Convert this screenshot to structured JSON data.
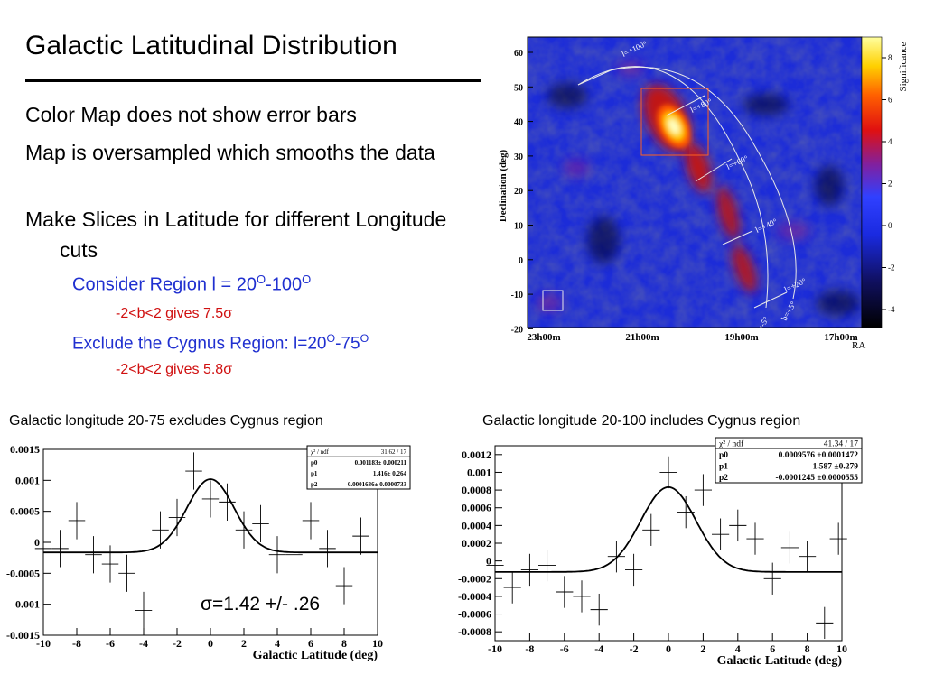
{
  "slide": {
    "title": "Galactic Latitudinal Distribution",
    "bullets": [
      "Color Map does not show error bars",
      "Map is oversampled which smooths the data",
      "Make Slices in Latitude for different Longitude cuts"
    ],
    "sub_bullets": [
      {
        "level": 1,
        "text": "Consider Region l = 20",
        "sup1": "O",
        "mid": "-100",
        "sup2": "O",
        "color": "#2030d0"
      },
      {
        "level": 2,
        "text": "-2<b<2 gives 7.5σ",
        "color": "#d01010"
      },
      {
        "level": 1,
        "text": "Exclude the Cygnus Region: l=20",
        "sup1": "O",
        "mid": "-75",
        "sup2": "O",
        "color": "#2030d0"
      },
      {
        "level": 2,
        "text": "-2<b<2 gives 5.8σ",
        "color": "#d01010"
      }
    ]
  },
  "skymap": {
    "ylabel": "Declination (deg)",
    "y_ticks": [
      "60",
      "50",
      "40",
      "30",
      "20",
      "10",
      "0",
      "-10",
      "-20"
    ],
    "x_ticks": [
      "23h00m",
      "21h00m",
      "19h00m",
      "17h00m"
    ],
    "xlabel": "RA",
    "colorbar_label": "Significance",
    "colorbar_ticks": [
      "8",
      "6",
      "4",
      "2",
      "0",
      "-2",
      "-4"
    ],
    "longitude_labels": [
      "l=+100°",
      "l=+80°",
      "l=+60°",
      "l=+40°",
      "l=+20°"
    ],
    "latitude_labels": [
      "b=+5°",
      "b=-5°"
    ]
  },
  "plots": [
    {
      "caption": "Galactic longitude 20-75 excludes Cygnus region",
      "xlabel": "Galactic Latitude (deg)",
      "x_ticks": [
        "-10",
        "-8",
        "-6",
        "-4",
        "-2",
        "0",
        "2",
        "4",
        "6",
        "8",
        "10"
      ],
      "y_ticks": [
        "0.0015",
        "0.001",
        "0.0005",
        "0",
        "-0.0005",
        "-0.001",
        "-0.0015"
      ],
      "stats": {
        "header_left": "χ² / ndf",
        "header_right": "31.62 / 17",
        "rows": [
          {
            "name": "p0",
            "value": "0.001183± 0.000211"
          },
          {
            "name": "p1",
            "value": "1.416± 0.264"
          },
          {
            "name": "p2",
            "value": "-0.0001636± 0.0000733"
          }
        ]
      },
      "annotation": "σ=1.42 +/- .26",
      "fit": {
        "amplitude": 0.001183,
        "sigma": 1.416,
        "offset": -0.0001636
      },
      "points": [
        {
          "x": -10,
          "y": -0.0001,
          "err": 0.0003
        },
        {
          "x": -9,
          "y": -0.0001,
          "err": 0.0003
        },
        {
          "x": -8,
          "y": 0.00035,
          "err": 0.0003
        },
        {
          "x": -7,
          "y": -0.0002,
          "err": 0.0003
        },
        {
          "x": -6,
          "y": -0.00035,
          "err": 0.0003
        },
        {
          "x": -5,
          "y": -0.0005,
          "err": 0.0003
        },
        {
          "x": -4,
          "y": -0.0011,
          "err": 0.0003
        },
        {
          "x": -3,
          "y": 0.0002,
          "err": 0.0003
        },
        {
          "x": -2,
          "y": 0.0004,
          "err": 0.0003
        },
        {
          "x": -1,
          "y": 0.00115,
          "err": 0.0003
        },
        {
          "x": 0,
          "y": 0.0007,
          "err": 0.0003
        },
        {
          "x": 1,
          "y": 0.00065,
          "err": 0.0003
        },
        {
          "x": 2,
          "y": 0.0002,
          "err": 0.0003
        },
        {
          "x": 3,
          "y": 0.0003,
          "err": 0.0003
        },
        {
          "x": 4,
          "y": -0.0002,
          "err": 0.0003
        },
        {
          "x": 5,
          "y": -0.0002,
          "err": 0.0003
        },
        {
          "x": 6,
          "y": 0.00035,
          "err": 0.0003
        },
        {
          "x": 7,
          "y": -0.0001,
          "err": 0.0003
        },
        {
          "x": 8,
          "y": -0.0007,
          "err": 0.0003
        },
        {
          "x": 9,
          "y": 0.0001,
          "err": 0.0003
        }
      ]
    },
    {
      "caption": "Galactic longitude 20-100 includes Cygnus region",
      "xlabel": "Galactic Latitude (deg)",
      "x_ticks": [
        "-10",
        "-8",
        "-6",
        "-4",
        "-2",
        "0",
        "2",
        "4",
        "6",
        "8",
        "10"
      ],
      "y_ticks": [
        "0.0012",
        "0.001",
        "0.0008",
        "0.0006",
        "0.0004",
        "0.0002",
        "0",
        "-0.0002",
        "-0.0004",
        "-0.0006",
        "-0.0008"
      ],
      "stats": {
        "header_left": "χ² / ndf",
        "header_right": "41.34 / 17",
        "rows": [
          {
            "name": "p0",
            "value": "0.0009576 ±0.0001472"
          },
          {
            "name": "p1",
            "value": "1.587 ±0.279"
          },
          {
            "name": "p2",
            "value": "-0.0001245 ±0.0000555"
          }
        ]
      },
      "annotation": "",
      "fit": {
        "amplitude": 0.0009576,
        "sigma": 1.587,
        "offset": -0.0001245
      },
      "points": [
        {
          "x": -10,
          "y": -5e-05,
          "err": 0.00018
        },
        {
          "x": -9,
          "y": -0.0003,
          "err": 0.00018
        },
        {
          "x": -8,
          "y": -0.0001,
          "err": 0.00018
        },
        {
          "x": -7,
          "y": -5e-05,
          "err": 0.00018
        },
        {
          "x": -6,
          "y": -0.00035,
          "err": 0.00018
        },
        {
          "x": -5,
          "y": -0.0004,
          "err": 0.00018
        },
        {
          "x": -4,
          "y": -0.00055,
          "err": 0.00018
        },
        {
          "x": -3,
          "y": 5e-05,
          "err": 0.00018
        },
        {
          "x": -2,
          "y": -0.0001,
          "err": 0.00018
        },
        {
          "x": -1,
          "y": 0.00035,
          "err": 0.00018
        },
        {
          "x": 0,
          "y": 0.001,
          "err": 0.00018
        },
        {
          "x": 1,
          "y": 0.00055,
          "err": 0.00018
        },
        {
          "x": 2,
          "y": 0.0008,
          "err": 0.00018
        },
        {
          "x": 3,
          "y": 0.0003,
          "err": 0.00018
        },
        {
          "x": 4,
          "y": 0.0004,
          "err": 0.00018
        },
        {
          "x": 5,
          "y": 0.00025,
          "err": 0.00018
        },
        {
          "x": 6,
          "y": -0.0002,
          "err": 0.00018
        },
        {
          "x": 7,
          "y": 0.00015,
          "err": 0.00018
        },
        {
          "x": 8,
          "y": 5e-05,
          "err": 0.00018
        },
        {
          "x": 9,
          "y": -0.0007,
          "err": 0.00018
        },
        {
          "x": 9.8,
          "y": 0.00025,
          "err": 0.00018
        }
      ]
    }
  ],
  "chart_data": [
    {
      "type": "scatter",
      "title": "Galactic longitude 20-75 excludes Cygnus region",
      "xlabel": "Galactic Latitude (deg)",
      "ylabel": "",
      "xlim": [
        -10,
        10
      ],
      "ylim": [
        -0.0015,
        0.0015
      ],
      "x": [
        -10,
        -9,
        -8,
        -7,
        -6,
        -5,
        -4,
        -3,
        -2,
        -1,
        0,
        1,
        2,
        3,
        4,
        5,
        6,
        7,
        8,
        9
      ],
      "y": [
        -0.0001,
        -0.0001,
        0.00035,
        -0.0002,
        -0.00035,
        -0.0005,
        -0.0011,
        0.0002,
        0.0004,
        0.00115,
        0.0007,
        0.00065,
        0.0002,
        0.0003,
        -0.0002,
        -0.0002,
        0.00035,
        -0.0001,
        -0.0007,
        0.0001
      ],
      "fit_function": "gaussian p0*exp(-x^2/(2*p1^2))+p2",
      "fit_params": {
        "p0": 0.001183,
        "p1": 1.416,
        "p2": -0.0001636
      },
      "chi2_ndf": "31.62 / 17",
      "grid": false,
      "legend": "top-right"
    },
    {
      "type": "scatter",
      "title": "Galactic longitude 20-100 includes Cygnus region",
      "xlabel": "Galactic Latitude (deg)",
      "ylabel": "",
      "xlim": [
        -10,
        10
      ],
      "ylim": [
        -0.0009,
        0.0013
      ],
      "x": [
        -10,
        -9,
        -8,
        -7,
        -6,
        -5,
        -4,
        -3,
        -2,
        -1,
        0,
        1,
        2,
        3,
        4,
        5,
        6,
        7,
        8,
        9,
        9.8
      ],
      "y": [
        -5e-05,
        -0.0003,
        -0.0001,
        -5e-05,
        -0.00035,
        -0.0004,
        -0.00055,
        5e-05,
        -0.0001,
        0.00035,
        0.001,
        0.00055,
        0.0008,
        0.0003,
        0.0004,
        0.00025,
        -0.0002,
        0.00015,
        5e-05,
        -0.0007,
        0.00025
      ],
      "fit_function": "gaussian p0*exp(-x^2/(2*p1^2))+p2",
      "fit_params": {
        "p0": 0.0009576,
        "p1": 1.587,
        "p2": -0.0001245
      },
      "chi2_ndf": "41.34 / 17",
      "grid": false,
      "legend": "top-right"
    }
  ]
}
